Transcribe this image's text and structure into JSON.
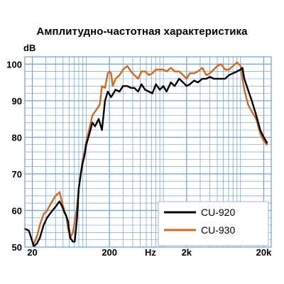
{
  "chart_data": {
    "type": "line",
    "title": "Амплитудно-частотная характеристика",
    "ylabel": "dB",
    "xlabel": "Hz",
    "x_scale": "log",
    "xlim": [
      16,
      25000
    ],
    "ylim": [
      50,
      102
    ],
    "grid": true,
    "legend_placement": "bottom-right",
    "y_ticks": [
      "100",
      "90",
      "80",
      "70",
      "60",
      "50"
    ],
    "x_ticks": [
      "20",
      "200",
      "2k",
      "20k"
    ],
    "series": [
      {
        "name": "CU-920",
        "color": "#000000",
        "x": [
          16,
          18,
          19,
          21,
          23,
          25,
          28,
          31,
          35,
          40,
          45,
          49,
          52,
          55,
          58,
          62,
          67,
          71,
          76,
          80,
          85,
          90,
          95,
          100,
          110,
          120,
          130,
          145,
          160,
          175,
          190,
          210,
          240,
          270,
          300,
          340,
          380,
          420,
          470,
          520,
          580,
          650,
          720,
          800,
          900,
          1000,
          1100,
          1250,
          1400,
          1600,
          1800,
          2000,
          2200,
          2500,
          2800,
          3200,
          3600,
          4000,
          4500,
          5000,
          5600,
          6300,
          7100,
          8000,
          9000,
          10000,
          10600,
          11200,
          12500,
          14000,
          16000,
          18000,
          20000,
          22000
        ],
        "y": [
          55,
          54.5,
          53,
          50.2,
          51,
          52.5,
          56,
          58,
          59.5,
          61,
          62.5,
          61,
          59.5,
          58.5,
          57,
          52.5,
          51.5,
          51.5,
          58,
          66,
          70,
          73,
          75,
          78,
          81,
          84,
          83,
          85,
          82,
          90,
          92.5,
          91,
          93,
          92.5,
          94,
          94,
          93.5,
          93.5,
          92.5,
          94.5,
          93,
          92.5,
          92,
          94.5,
          93,
          94,
          92.5,
          95,
          94,
          96,
          95,
          94,
          94.5,
          95.5,
          95,
          96,
          96,
          96.5,
          96,
          96,
          96,
          96,
          97,
          97.5,
          98,
          98.5,
          99,
          96,
          93,
          90,
          86,
          82,
          80,
          78.5
        ]
      },
      {
        "name": "CU-930",
        "color": "#d2691e",
        "x": [
          21,
          23,
          25,
          28,
          31,
          35,
          40,
          45,
          49,
          52,
          55,
          58,
          62,
          67,
          71,
          76,
          80,
          85,
          90,
          95,
          100,
          110,
          120,
          130,
          140,
          150,
          160,
          175,
          190,
          200,
          210,
          220,
          240,
          270,
          300,
          340,
          380,
          420,
          470,
          520,
          580,
          650,
          720,
          800,
          900,
          1000,
          1100,
          1250,
          1400,
          1600,
          1800,
          2000,
          2200,
          2500,
          2800,
          3200,
          3600,
          4000,
          4500,
          5000,
          5600,
          6300,
          7100,
          8000,
          9000,
          10000,
          10600,
          11200,
          12500,
          14000,
          16000,
          18000,
          20000,
          22000
        ],
        "y": [
          51,
          53,
          56,
          59,
          60,
          62,
          64,
          65,
          62,
          60,
          58.5,
          55,
          52.5,
          54,
          57,
          61,
          66,
          70,
          74,
          76,
          79,
          82.5,
          86,
          87,
          88,
          89,
          94,
          93.5,
          97.5,
          98,
          97.5,
          94,
          96,
          97,
          98.5,
          99.5,
          98,
          97,
          96,
          98,
          98,
          97,
          97.5,
          98.5,
          98.5,
          98.5,
          98,
          99,
          98,
          98,
          97,
          96,
          97.5,
          97.5,
          98,
          99,
          97,
          97.5,
          98.5,
          99.5,
          100,
          98.5,
          98.5,
          99.5,
          100.5,
          99.5,
          96,
          93,
          89,
          87,
          85,
          81,
          79,
          78
        ]
      }
    ]
  }
}
